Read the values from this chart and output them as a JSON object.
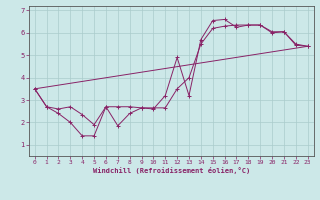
{
  "xlabel": "Windchill (Refroidissement éolien,°C)",
  "background_color": "#cce8e8",
  "grid_color": "#aacccc",
  "line_color": "#882266",
  "xlim": [
    -0.5,
    23.5
  ],
  "ylim": [
    0.5,
    7.2
  ],
  "xticks": [
    0,
    1,
    2,
    3,
    4,
    5,
    6,
    7,
    8,
    9,
    10,
    11,
    12,
    13,
    14,
    15,
    16,
    17,
    18,
    19,
    20,
    21,
    22,
    23
  ],
  "yticks": [
    1,
    2,
    3,
    4,
    5,
    6,
    7
  ],
  "series1_x": [
    0,
    1,
    2,
    3,
    4,
    5,
    6,
    7,
    8,
    9,
    10,
    11,
    12,
    13,
    14,
    15,
    16,
    17,
    18,
    19,
    20,
    21,
    22,
    23
  ],
  "series1_y": [
    3.5,
    2.7,
    2.4,
    2.0,
    1.4,
    1.4,
    2.7,
    1.85,
    2.4,
    2.65,
    2.6,
    3.2,
    4.9,
    3.2,
    5.7,
    6.55,
    6.6,
    6.25,
    6.35,
    6.35,
    6.0,
    6.05,
    5.5,
    5.4
  ],
  "series2_x": [
    0,
    1,
    2,
    3,
    4,
    5,
    6,
    7,
    8,
    9,
    10,
    11,
    12,
    13,
    14,
    15,
    16,
    17,
    18,
    19,
    20,
    21,
    22,
    23
  ],
  "series2_y": [
    3.5,
    2.7,
    2.6,
    2.7,
    2.35,
    1.9,
    2.7,
    2.7,
    2.7,
    2.65,
    2.65,
    2.65,
    3.5,
    4.0,
    5.5,
    6.2,
    6.3,
    6.35,
    6.35,
    6.35,
    6.05,
    6.05,
    5.45,
    5.4
  ],
  "series3_x": [
    0,
    23
  ],
  "series3_y": [
    3.5,
    5.4
  ]
}
